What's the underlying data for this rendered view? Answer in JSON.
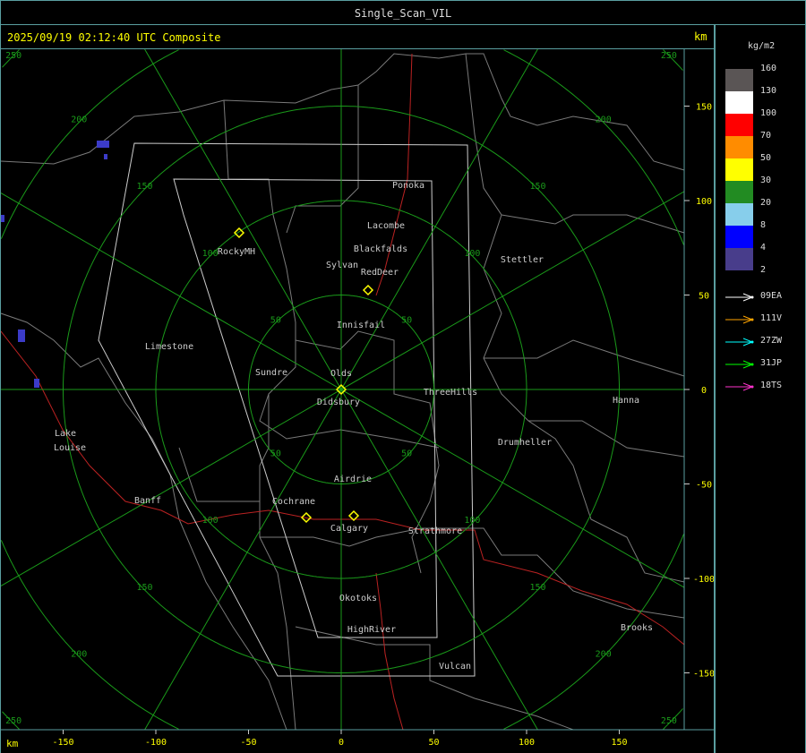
{
  "window_title": "Single_Scan_VIL",
  "info": "2025/09/19 02:12:40 UTC Composite",
  "km_label": "km",
  "legend": {
    "unit": "kg/m2",
    "levels": [
      {
        "label": "160",
        "color": "#5a5555"
      },
      {
        "label": "130",
        "color": "#ffffff"
      },
      {
        "label": "100",
        "color": "#ff0000"
      },
      {
        "label": "70",
        "color": "#ff8c00"
      },
      {
        "label": "50",
        "color": "#ffff00"
      },
      {
        "label": "30",
        "color": "#228b22"
      },
      {
        "label": "20",
        "color": "#87ceeb"
      },
      {
        "label": "8",
        "color": "#0000ff"
      },
      {
        "label": "4",
        "color": "#483d8b"
      },
      {
        "label": "2",
        "color": ""
      }
    ],
    "radars": [
      {
        "name": "09EA",
        "color": "#ffffff"
      },
      {
        "name": "111V",
        "color": "#ffa500"
      },
      {
        "name": "27ZW",
        "color": "#00ffff"
      },
      {
        "name": "31JP",
        "color": "#00ff00"
      },
      {
        "name": "18TS",
        "color": "#ff33cc"
      }
    ]
  },
  "x_ticks": [
    "-150",
    "-100",
    "-50",
    "0",
    "50",
    "100",
    "150"
  ],
  "y_ticks": [
    "150",
    "100",
    "50",
    "0",
    "-50",
    "-100",
    "-150"
  ],
  "ring_labels": [
    "50",
    "100",
    "150",
    "200",
    "250"
  ],
  "towns": [
    "Ponoka",
    "Lacombe",
    "Blackfalds",
    "Sylvan",
    "RedDeer",
    "Stettler",
    "RockyMH",
    "Innisfail",
    "Limestone",
    "Sundre",
    "Olds",
    "Didsbury",
    "ThreeHills",
    "Hanna",
    "Drumheller",
    "Lake",
    "Louise",
    "Airdrie",
    "Banff",
    "Cochrane",
    "Calgary",
    "Strathmore",
    "Okotoks",
    "HighRiver",
    "Brooks",
    "Vulcan"
  ]
}
